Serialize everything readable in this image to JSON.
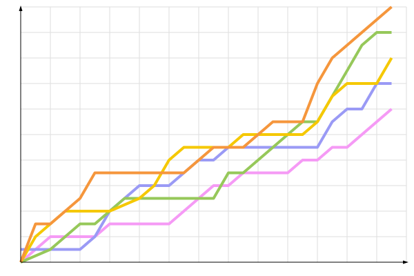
{
  "chart_data": {
    "type": "line",
    "grid": true,
    "xlim": [
      0,
      13
    ],
    "ylim": [
      0,
      10
    ],
    "xticks": [
      0,
      1,
      2,
      3,
      4,
      5,
      6,
      7,
      8,
      9,
      10,
      11,
      12,
      13
    ],
    "yticks": [
      0,
      1,
      2,
      3,
      4,
      5,
      6,
      7,
      8,
      9,
      10
    ],
    "series": [
      {
        "color": "#f59af5",
        "x": [
          0,
          1,
          2.5,
          3,
          5,
          6,
          6.5,
          7,
          7.5,
          9,
          9.5,
          10,
          10.5,
          11,
          12.5
        ],
        "values": [
          0,
          1,
          1,
          1.5,
          1.5,
          2.5,
          3,
          3,
          3.5,
          3.5,
          4,
          4,
          4.5,
          4.5,
          6
        ]
      },
      {
        "color": "#9a9af5",
        "x": [
          0,
          2,
          2.5,
          3,
          3.5,
          4,
          5,
          5.5,
          6,
          6.5,
          7,
          10,
          10.5,
          11,
          11.5,
          12,
          12.5
        ],
        "values": [
          0.5,
          0.5,
          1,
          2,
          2.5,
          3,
          3,
          3.5,
          4,
          4,
          4.5,
          4.5,
          5.5,
          6,
          6,
          7,
          7
        ]
      },
      {
        "color": "#96c85a",
        "x": [
          0,
          1,
          2,
          2.5,
          3,
          3.5,
          6.5,
          7,
          7.5,
          9,
          9.5,
          10,
          11.5,
          12,
          12.5
        ],
        "values": [
          0,
          0.5,
          1.5,
          1.5,
          2,
          2.5,
          2.5,
          3.5,
          3.5,
          5,
          5.5,
          5.5,
          8.5,
          9,
          9
        ]
      },
      {
        "color": "#f5c800",
        "x": [
          0,
          0.5,
          1.5,
          3,
          4,
          4.5,
          5,
          5.5,
          7,
          7.5,
          9.5,
          10,
          10.5,
          11,
          12,
          12.5
        ],
        "values": [
          0,
          1,
          2,
          2,
          2.5,
          3,
          4,
          4.5,
          4.5,
          5,
          5,
          5.5,
          6.5,
          7,
          7,
          8
        ]
      },
      {
        "color": "#f5963c",
        "x": [
          0,
          0.5,
          1,
          2,
          2.5,
          5.5,
          6.5,
          7.5,
          8.5,
          9.5,
          10,
          10.5,
          12.5
        ],
        "values": [
          0,
          1.5,
          1.5,
          2.5,
          3.5,
          3.5,
          4.5,
          4.5,
          5.5,
          5.5,
          7,
          8,
          10
        ]
      }
    ]
  }
}
